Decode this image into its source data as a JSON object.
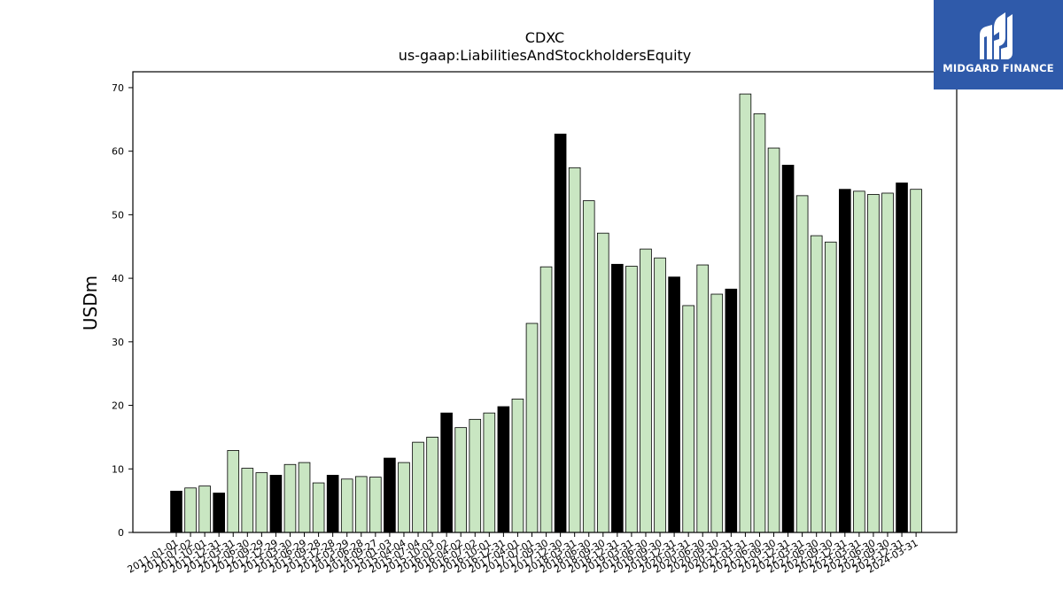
{
  "logo": {
    "text": "MIDGARD FINANCE",
    "background": "#2f5aaa"
  },
  "chart_data": {
    "type": "bar",
    "title": "CDXC",
    "subtitle": "us-gaap:LiabilitiesAndStockholdersEquity",
    "xlabel": "",
    "ylabel": "USDm",
    "ylim": [
      0,
      72.5
    ],
    "yticks": [
      0,
      10,
      20,
      30,
      40,
      50,
      60,
      70
    ],
    "grid": false,
    "colors": {
      "annual": "#000000",
      "quarterly": "#c9e6c2",
      "edge": "#000000"
    },
    "categories": [
      "2011-01-01",
      "2011-07-02",
      "2011-10-01",
      "2011-12-31",
      "2012-03-31",
      "2012-06-30",
      "2012-09-29",
      "2012-12-29",
      "2013-03-30",
      "2013-06-29",
      "2013-09-28",
      "2013-12-28",
      "2014-03-29",
      "2014-06-28",
      "2014-09-27",
      "2015-01-03",
      "2015-04-04",
      "2015-07-04",
      "2015-10-03",
      "2016-01-02",
      "2016-04-02",
      "2016-07-02",
      "2016-10-01",
      "2016-12-31",
      "2017-04-01",
      "2017-07-01",
      "2017-09-30",
      "2017-12-30",
      "2018-03-31",
      "2018-06-30",
      "2018-09-30",
      "2018-12-31",
      "2019-03-31",
      "2019-06-30",
      "2019-09-30",
      "2019-12-31",
      "2020-03-31",
      "2020-06-30",
      "2020-09-30",
      "2020-12-31",
      "2021-03-31",
      "2021-06-30",
      "2021-09-30",
      "2021-12-31",
      "2022-03-31",
      "2022-06-30",
      "2022-09-30",
      "2022-12-31",
      "2023-03-31",
      "2023-06-30",
      "2023-09-30",
      "2023-12-31",
      "2024-03-31"
    ],
    "values": [
      6.5,
      7.0,
      7.3,
      6.2,
      12.9,
      10.1,
      9.4,
      9.0,
      10.7,
      11.0,
      7.8,
      9.0,
      8.4,
      8.8,
      8.7,
      11.7,
      11.0,
      14.2,
      15.0,
      18.8,
      16.5,
      17.8,
      18.8,
      19.8,
      21.0,
      32.9,
      41.8,
      62.7,
      57.4,
      52.2,
      47.1,
      42.2,
      41.9,
      44.6,
      43.2,
      40.2,
      35.7,
      42.1,
      37.5,
      38.3,
      69.0,
      65.9,
      60.5,
      57.8,
      53.0,
      46.7,
      45.7,
      54.0,
      53.7,
      53.2,
      53.4,
      55.0,
      54.0
    ],
    "annual_flags": [
      1,
      0,
      0,
      1,
      0,
      0,
      0,
      1,
      0,
      0,
      0,
      1,
      0,
      0,
      0,
      1,
      0,
      0,
      0,
      1,
      0,
      0,
      0,
      1,
      0,
      0,
      0,
      1,
      0,
      0,
      0,
      1,
      0,
      0,
      0,
      1,
      0,
      0,
      0,
      1,
      0,
      0,
      0,
      1,
      0,
      0,
      0,
      1,
      0,
      0,
      0,
      1,
      0
    ]
  }
}
